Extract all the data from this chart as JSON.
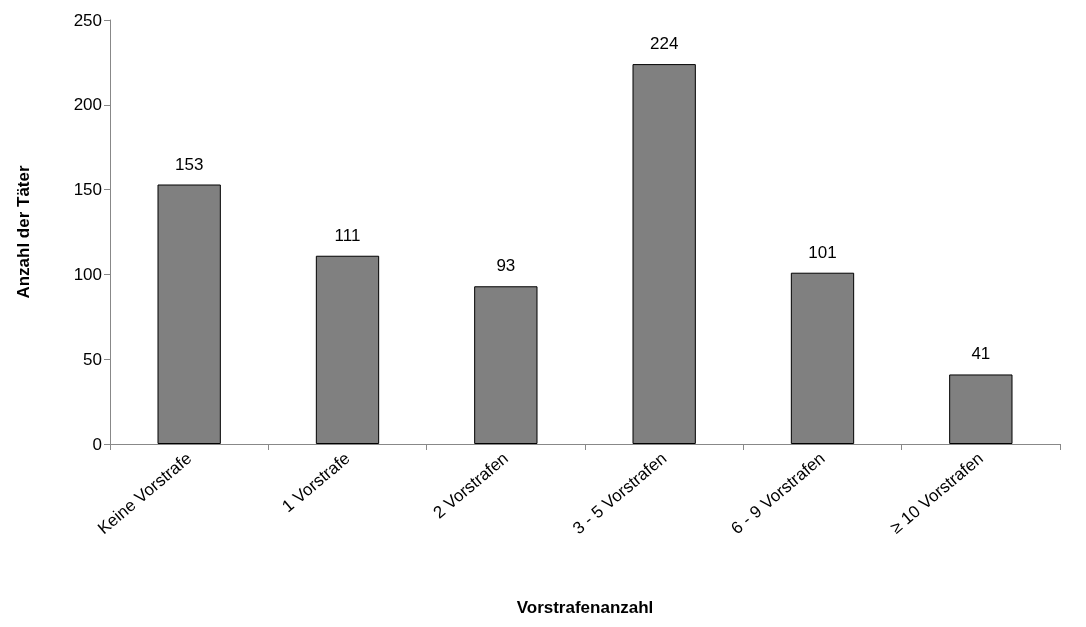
{
  "chart_data": {
    "type": "bar",
    "xlabel": "Vorstrafenanzahl",
    "ylabel": "Anzahl der Täter",
    "categories": [
      "Keine Vorstrafe",
      "1 Vorstrafe",
      "2 Vorstrafen",
      "3 - 5 Vorstrafen",
      "6 - 9 Vorstrafen",
      "≥ 10 Vorstrafen"
    ],
    "values": [
      153,
      111,
      93,
      224,
      101,
      41
    ],
    "color": "#808080",
    "ylim": [
      0,
      250
    ],
    "yticks": [
      0,
      50,
      100,
      150,
      200,
      250
    ],
    "grid": false,
    "data_labels": true
  }
}
